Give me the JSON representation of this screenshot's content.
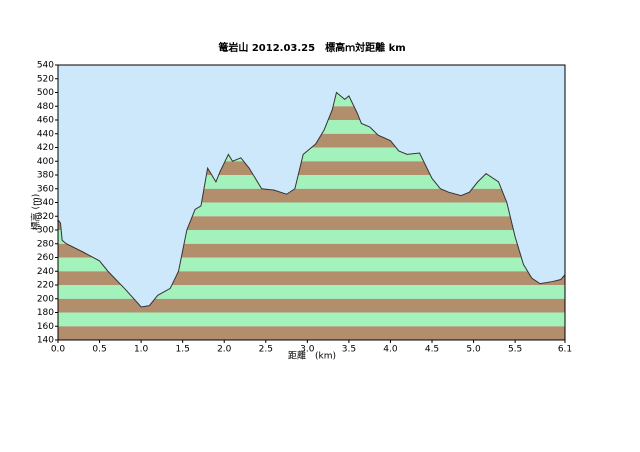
{
  "chart_data": {
    "type": "area",
    "title": "篭岩山 2012.03.25　標高ｍ対距離 km",
    "x_label": "距離　(km)",
    "y_label": "標高 (m)",
    "x": [
      0.0,
      0.03,
      0.05,
      0.1,
      0.3,
      0.5,
      0.6,
      0.8,
      0.95,
      1.0,
      1.1,
      1.2,
      1.35,
      1.45,
      1.55,
      1.65,
      1.72,
      1.8,
      1.85,
      1.9,
      1.95,
      2.05,
      2.1,
      2.2,
      2.3,
      2.45,
      2.6,
      2.75,
      2.85,
      2.95,
      3.1,
      3.2,
      3.3,
      3.35,
      3.45,
      3.5,
      3.6,
      3.65,
      3.75,
      3.85,
      4.0,
      4.1,
      4.2,
      4.35,
      4.5,
      4.6,
      4.7,
      4.85,
      4.95,
      5.05,
      5.15,
      5.3,
      5.4,
      5.5,
      5.6,
      5.7,
      5.8,
      5.95,
      6.05,
      6.1
    ],
    "values": [
      315,
      310,
      285,
      280,
      268,
      255,
      240,
      215,
      195,
      188,
      190,
      205,
      215,
      240,
      300,
      330,
      335,
      390,
      380,
      370,
      385,
      410,
      400,
      405,
      390,
      360,
      358,
      352,
      360,
      410,
      425,
      445,
      475,
      500,
      490,
      495,
      470,
      455,
      450,
      438,
      430,
      415,
      410,
      412,
      375,
      360,
      355,
      350,
      355,
      370,
      382,
      370,
      340,
      290,
      250,
      230,
      222,
      225,
      228,
      235
    ],
    "xlim": [
      0,
      6.1
    ],
    "xticks": [
      {
        "value": 0,
        "label": "0.0"
      },
      0.5,
      {
        "value": 1,
        "label": "1.0"
      },
      1.5,
      {
        "value": 2,
        "label": "2.0"
      },
      2.5,
      {
        "value": 3,
        "label": "3.0"
      },
      3.5,
      {
        "value": 4,
        "label": "4.0"
      },
      4.5,
      {
        "value": 5,
        "label": "5.0"
      },
      5.5,
      6.1
    ],
    "ylim": [
      140,
      540
    ],
    "yticks": [
      140,
      160,
      180,
      200,
      220,
      240,
      260,
      280,
      300,
      320,
      340,
      360,
      380,
      400,
      420,
      440,
      460,
      480,
      500,
      520,
      540
    ],
    "background": "#cde8fb",
    "band_colors": [
      "#b38e6c",
      "#a3f2bc"
    ],
    "line_color": "#333333"
  }
}
